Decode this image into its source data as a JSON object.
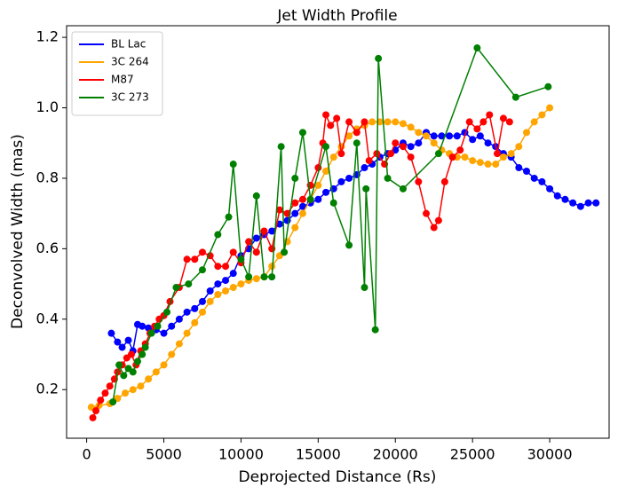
{
  "chart_data": {
    "type": "line",
    "title": "Jet Width Profile",
    "xlabel": "Deprojected Distance (Rs)",
    "ylabel": "Deconvolved Width (mas)",
    "xlim": [
      -1300,
      33850
    ],
    "ylim": [
      0.062,
      1.233
    ],
    "xticks": [
      0,
      5000,
      10000,
      15000,
      20000,
      25000,
      30000
    ],
    "yticks": [
      0.2,
      0.4,
      0.6,
      0.8,
      {
        "value": 1,
        "label": "1.0"
      },
      1.2
    ],
    "grid": false,
    "legend": "upper left",
    "markers": true,
    "series": [
      {
        "name": "BL Lac",
        "color": "#0000ff",
        "x": [
          1600,
          2000,
          2300,
          2700,
          3000,
          3300,
          3600,
          4000,
          4500,
          5000,
          5500,
          6000,
          6500,
          7000,
          7500,
          8000,
          8500,
          9000,
          9500,
          10000,
          10500,
          11000,
          11500,
          12000,
          12500,
          13000,
          13500,
          14000,
          14500,
          15000,
          15500,
          16000,
          16500,
          17000,
          17500,
          18000,
          18500,
          19000,
          19500,
          20000,
          20500,
          21000,
          21500,
          22000,
          22500,
          23000,
          23500,
          24000,
          24500,
          25000,
          25500,
          26000,
          26500,
          27000,
          27500,
          28000,
          28500,
          29000,
          29500,
          30000,
          30500,
          31000,
          31500,
          32000,
          32500,
          33000
        ],
        "values": [
          0.36,
          0.335,
          0.32,
          0.34,
          0.31,
          0.385,
          0.38,
          0.375,
          0.37,
          0.36,
          0.38,
          0.4,
          0.42,
          0.43,
          0.45,
          0.48,
          0.5,
          0.51,
          0.53,
          0.58,
          0.6,
          0.63,
          0.64,
          0.65,
          0.67,
          0.68,
          0.7,
          0.72,
          0.73,
          0.74,
          0.76,
          0.77,
          0.79,
          0.8,
          0.81,
          0.83,
          0.84,
          0.86,
          0.87,
          0.88,
          0.9,
          0.89,
          0.9,
          0.93,
          0.92,
          0.92,
          0.92,
          0.92,
          0.93,
          0.91,
          0.92,
          0.9,
          0.89,
          0.87,
          0.86,
          0.83,
          0.82,
          0.8,
          0.79,
          0.77,
          0.75,
          0.74,
          0.73,
          0.72,
          0.73,
          0.73
        ]
      },
      {
        "name": "3C 264",
        "color": "#ffa500",
        "x": [
          300,
          800,
          1500,
          2000,
          2500,
          3000,
          3500,
          4000,
          4500,
          5000,
          5500,
          6000,
          6500,
          7000,
          7500,
          8000,
          8500,
          9000,
          9500,
          10000,
          10500,
          11000,
          11500,
          12000,
          12500,
          13000,
          13500,
          14000,
          14500,
          15000,
          15500,
          16000,
          16500,
          17000,
          17500,
          18000,
          18500,
          19000,
          19500,
          20000,
          20500,
          21000,
          21500,
          22000,
          22500,
          23000,
          23500,
          24000,
          24500,
          25000,
          25500,
          26000,
          26500,
          27000,
          27500,
          28000,
          28500,
          29000,
          29500,
          30000
        ],
        "values": [
          0.15,
          0.155,
          0.16,
          0.175,
          0.19,
          0.2,
          0.21,
          0.23,
          0.25,
          0.27,
          0.3,
          0.33,
          0.36,
          0.39,
          0.42,
          0.45,
          0.47,
          0.48,
          0.49,
          0.5,
          0.51,
          0.515,
          0.52,
          0.55,
          0.58,
          0.62,
          0.66,
          0.7,
          0.74,
          0.78,
          0.82,
          0.86,
          0.89,
          0.92,
          0.94,
          0.95,
          0.96,
          0.96,
          0.96,
          0.96,
          0.955,
          0.945,
          0.93,
          0.92,
          0.9,
          0.88,
          0.87,
          0.86,
          0.86,
          0.85,
          0.845,
          0.84,
          0.84,
          0.86,
          0.87,
          0.89,
          0.93,
          0.96,
          0.98,
          1.0
        ]
      },
      {
        "name": "M87",
        "color": "#ff0000",
        "x": [
          400,
          600,
          900,
          1200,
          1500,
          1800,
          2000,
          2300,
          2600,
          2900,
          3200,
          3500,
          3800,
          4100,
          4400,
          4700,
          5000,
          5400,
          6000,
          6500,
          7000,
          7500,
          8000,
          8500,
          9000,
          9500,
          10000,
          10500,
          11000,
          11500,
          12000,
          12500,
          13000,
          13500,
          14000,
          14500,
          15000,
          15300,
          15500,
          15800,
          16200,
          16500,
          17000,
          17500,
          18000,
          18300,
          18800,
          19300,
          19700,
          20000,
          20500,
          21000,
          21500,
          22000,
          22500,
          22800,
          23200,
          23700,
          24200,
          24800,
          25300,
          25700,
          26100,
          26600,
          27000,
          27400
        ],
        "values": [
          0.12,
          0.14,
          0.17,
          0.19,
          0.21,
          0.23,
          0.25,
          0.27,
          0.29,
          0.3,
          0.27,
          0.31,
          0.33,
          0.36,
          0.38,
          0.4,
          0.41,
          0.45,
          0.49,
          0.57,
          0.57,
          0.59,
          0.58,
          0.55,
          0.55,
          0.59,
          0.56,
          0.62,
          0.59,
          0.65,
          0.6,
          0.71,
          0.7,
          0.73,
          0.74,
          0.78,
          0.83,
          0.9,
          0.98,
          0.95,
          0.97,
          0.87,
          0.96,
          0.93,
          0.96,
          0.85,
          0.87,
          0.84,
          0.87,
          0.9,
          0.89,
          0.86,
          0.79,
          0.7,
          0.66,
          0.68,
          0.79,
          0.86,
          0.88,
          0.96,
          0.94,
          0.96,
          0.98,
          0.87,
          0.97,
          0.96
        ]
      },
      {
        "name": "3C 273",
        "color": "#008000",
        "x": [
          1700,
          2100,
          2400,
          2700,
          3000,
          3300,
          3600,
          3800,
          4200,
          4600,
          5200,
          5800,
          6600,
          7500,
          8500,
          9200,
          9500,
          10000,
          10500,
          11000,
          11500,
          12000,
          12600,
          12800,
          13500,
          14000,
          14500,
          15500,
          16000,
          17000,
          17500,
          18000,
          18100,
          18700,
          18900,
          19500,
          20500,
          22800,
          25300,
          27800,
          29900
        ],
        "values": [
          0.165,
          0.27,
          0.24,
          0.26,
          0.25,
          0.28,
          0.3,
          0.32,
          0.36,
          0.38,
          0.42,
          0.49,
          0.5,
          0.54,
          0.64,
          0.69,
          0.84,
          0.57,
          0.52,
          0.75,
          0.52,
          0.52,
          0.89,
          0.59,
          0.8,
          0.93,
          0.74,
          0.89,
          0.73,
          0.61,
          0.9,
          0.49,
          0.77,
          0.37,
          1.14,
          0.8,
          0.77,
          0.87,
          1.17,
          1.03,
          1.06
        ]
      }
    ]
  }
}
